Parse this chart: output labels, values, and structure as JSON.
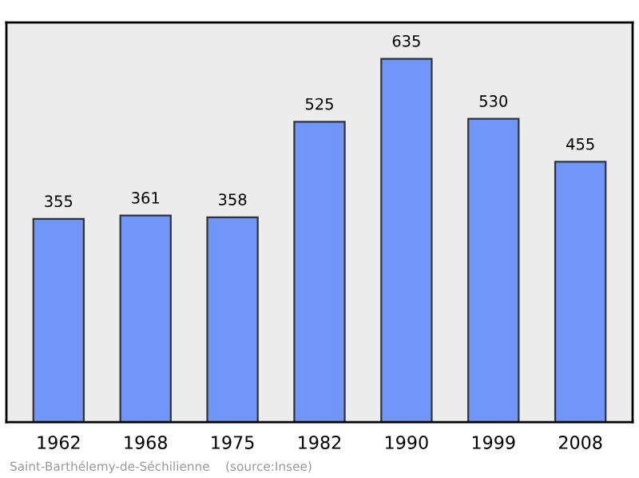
{
  "chart_data": {
    "type": "bar",
    "categories": [
      "1962",
      "1968",
      "1975",
      "1982",
      "1990",
      "1999",
      "2008"
    ],
    "values": [
      355,
      361,
      358,
      525,
      635,
      530,
      455
    ],
    "color": "#6f96f8",
    "data_labels": true,
    "grid": false,
    "annotations": [
      "Saint-Barthélemy-de-Séchilienne    (source:Insee)"
    ]
  }
}
